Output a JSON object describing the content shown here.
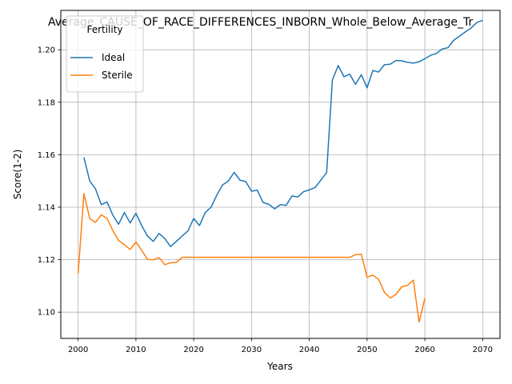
{
  "chart_data": {
    "type": "line",
    "title": "Average_CAUSE_OF_RACE_DIFFERENCES_INBORN_Whole_Below_Average_Tr",
    "xlabel": "Years",
    "ylabel": "Score(1-2)",
    "xlim": [
      1997,
      2073
    ],
    "ylim": [
      1.09,
      1.215
    ],
    "xticks": [
      2000,
      2010,
      2020,
      2030,
      2040,
      2050,
      2060,
      2070
    ],
    "yticks": [
      1.1,
      1.12,
      1.14,
      1.16,
      1.18,
      1.2
    ],
    "xtick_labels": [
      "2000",
      "2010",
      "2020",
      "2030",
      "2040",
      "2050",
      "2060",
      "2070"
    ],
    "ytick_labels": [
      "1.10",
      "1.12",
      "1.14",
      "1.16",
      "1.18",
      "1.20"
    ],
    "grid": true,
    "legend": {
      "title": "Fertility",
      "placement": "top-left"
    },
    "series": [
      {
        "name": "Ideal",
        "color": "#1f77b4",
        "x": [
          2001,
          2002,
          2003,
          2004,
          2005,
          2006,
          2007,
          2008,
          2009,
          2010,
          2011,
          2012,
          2013,
          2014,
          2015,
          2016,
          2017,
          2018,
          2019,
          2020,
          2021,
          2022,
          2023,
          2024,
          2025,
          2026,
          2027,
          2028,
          2029,
          2030,
          2031,
          2032,
          2033,
          2034,
          2035,
          2036,
          2037,
          2038,
          2039,
          2040,
          2041,
          2042,
          2043,
          2044,
          2045,
          2046,
          2047,
          2048,
          2049,
          2050,
          2051,
          2052,
          2053,
          2054,
          2055,
          2056,
          2057,
          2058,
          2059,
          2060,
          2061,
          2062,
          2063,
          2064,
          2065,
          2066,
          2067,
          2068,
          2069,
          2070
        ],
        "y": [
          1.159,
          1.15,
          1.147,
          1.141,
          1.142,
          1.137,
          1.1335,
          1.138,
          1.134,
          1.1377,
          1.133,
          1.129,
          1.127,
          1.13,
          1.128,
          1.125,
          1.127,
          1.129,
          1.131,
          1.1357,
          1.133,
          1.138,
          1.14,
          1.1446,
          1.1485,
          1.15,
          1.1533,
          1.1503,
          1.1498,
          1.1461,
          1.1465,
          1.1418,
          1.1411,
          1.1394,
          1.141,
          1.1407,
          1.1443,
          1.1439,
          1.1459,
          1.1466,
          1.1475,
          1.1503,
          1.1532,
          1.1885,
          1.194,
          1.1897,
          1.1907,
          1.1868,
          1.1905,
          1.1855,
          1.1921,
          1.1915,
          1.1943,
          1.1945,
          1.1959,
          1.1958,
          1.1952,
          1.1949,
          1.1954,
          1.1966,
          1.1979,
          1.1986,
          1.2003,
          1.2008,
          1.2036,
          1.2052,
          1.2068,
          1.2083,
          1.2104,
          1.2112
        ]
      },
      {
        "name": "Sterile",
        "color": "#ff7f0e",
        "x": [
          2000,
          2001,
          2002,
          2003,
          2004,
          2005,
          2006,
          2007,
          2008,
          2009,
          2010,
          2011,
          2012,
          2013,
          2014,
          2015,
          2016,
          2017,
          2018,
          2019,
          2020,
          2021,
          2022,
          2023,
          2024,
          2025,
          2026,
          2027,
          2028,
          2029,
          2030,
          2031,
          2032,
          2033,
          2034,
          2035,
          2036,
          2037,
          2038,
          2039,
          2040,
          2041,
          2042,
          2043,
          2044,
          2045,
          2046,
          2047,
          2048,
          2049,
          2050,
          2051,
          2052,
          2053,
          2054,
          2055,
          2056,
          2057,
          2058,
          2059,
          2060
        ],
        "y": [
          1.1148,
          1.1452,
          1.1357,
          1.1342,
          1.1371,
          1.1357,
          1.1311,
          1.1273,
          1.1257,
          1.1239,
          1.1267,
          1.1236,
          1.1201,
          1.12,
          1.1208,
          1.1181,
          1.1188,
          1.119,
          1.1209,
          1.1209,
          1.1209,
          1.1209,
          1.1209,
          1.1209,
          1.1209,
          1.1209,
          1.1209,
          1.1209,
          1.1209,
          1.1209,
          1.1209,
          1.1209,
          1.1209,
          1.1209,
          1.1209,
          1.1209,
          1.1209,
          1.1209,
          1.1209,
          1.1209,
          1.1209,
          1.1209,
          1.1209,
          1.1209,
          1.1209,
          1.1209,
          1.1209,
          1.1209,
          1.1219,
          1.1221,
          1.1133,
          1.1141,
          1.1125,
          1.1075,
          1.1054,
          1.1068,
          1.1097,
          1.1102,
          1.1122,
          1.0962,
          1.1053
        ]
      }
    ]
  }
}
